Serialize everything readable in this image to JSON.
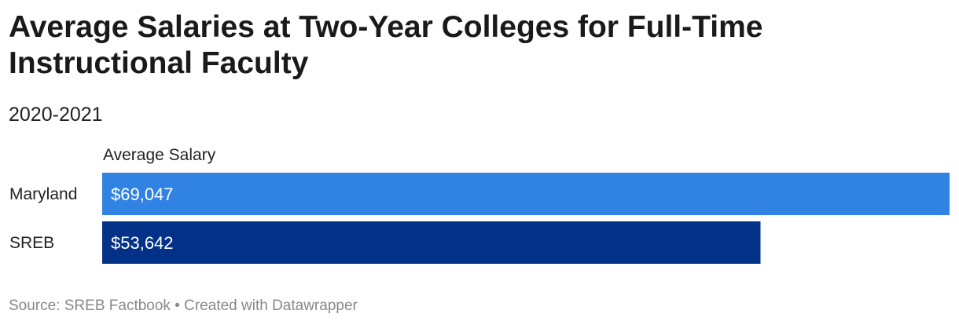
{
  "header": {
    "title": "Average Salaries at Two-Year Colleges for Full-Time Instructional Faculty",
    "subtitle": "2020-2021"
  },
  "footer": {
    "source": "Source: SREB Factbook • Created with Datawrapper"
  },
  "chart_data": {
    "type": "bar",
    "orientation": "horizontal",
    "title": "Average Salaries at Two-Year Colleges for Full-Time Instructional Faculty",
    "subtitle": "2020-2021",
    "column_header": "Average Salary",
    "categories": [
      "Maryland",
      "SREB"
    ],
    "values": [
      69047,
      53642
    ],
    "value_labels": [
      "$69,047",
      "$53,642"
    ],
    "colors": [
      "#3183e3",
      "#033187"
    ],
    "xlim": [
      0,
      69047
    ],
    "grid": false,
    "legend": "none"
  }
}
